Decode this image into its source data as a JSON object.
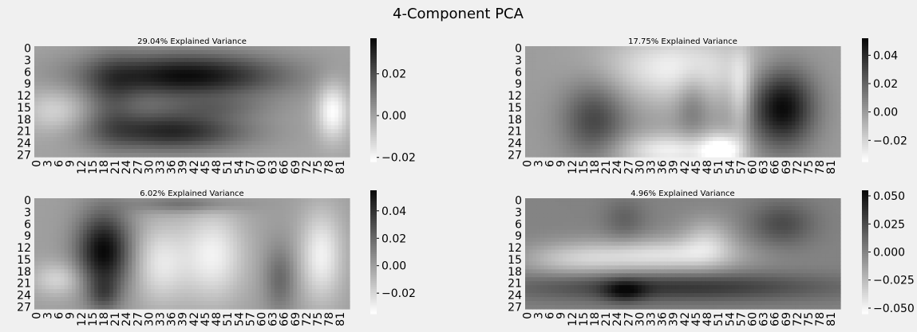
{
  "figure": {
    "title": "4-Component PCA",
    "background": "#f0f0f0",
    "colormap": "Greys (white = low, black = high)"
  },
  "chart_data": [
    {
      "type": "heatmap",
      "title": "29.04% Explained Variance",
      "rows": 28,
      "cols": 84,
      "x_ticks": [
        "0",
        "3",
        "6",
        "9",
        "12",
        "15",
        "18",
        "21",
        "24",
        "27",
        "30",
        "33",
        "36",
        "39",
        "42",
        "45",
        "48",
        "51",
        "54",
        "57",
        "60",
        "63",
        "66",
        "69",
        "72",
        "75",
        "78",
        "81"
      ],
      "y_ticks": [
        "0",
        "3",
        "6",
        "9",
        "12",
        "15",
        "18",
        "21",
        "24",
        "27"
      ],
      "colorbar_ticks": [
        "0.02",
        "0.00",
        "−0.02"
      ],
      "vmin": -0.022,
      "vmax": 0.037,
      "fill_value": 0.0,
      "blobs": [
        {
          "row": 7,
          "col": 40,
          "sr": 4,
          "sc": 18,
          "amp": 0.036
        },
        {
          "row": 21,
          "col": 36,
          "sr": 3.5,
          "sc": 14,
          "amp": 0.03
        },
        {
          "row": 13,
          "col": 20,
          "sr": 8,
          "sc": 5,
          "amp": 0.012
        },
        {
          "row": 16,
          "col": 79,
          "sr": 5,
          "sc": 3,
          "amp": -0.022
        },
        {
          "row": 16,
          "col": 5,
          "sr": 4,
          "sc": 6,
          "amp": -0.012
        },
        {
          "row": 15,
          "col": 48,
          "sr": 2,
          "sc": 10,
          "amp": 0.008
        }
      ]
    },
    {
      "type": "heatmap",
      "title": "17.75% Explained Variance",
      "rows": 28,
      "cols": 84,
      "x_ticks": [
        "0",
        "3",
        "6",
        "9",
        "12",
        "15",
        "18",
        "21",
        "24",
        "27",
        "30",
        "33",
        "36",
        "39",
        "42",
        "45",
        "48",
        "51",
        "54",
        "57",
        "60",
        "63",
        "66",
        "69",
        "72",
        "75",
        "78",
        "81"
      ],
      "y_ticks": [
        "0",
        "3",
        "6",
        "9",
        "12",
        "15",
        "18",
        "21",
        "24",
        "27"
      ],
      "colorbar_ticks": [
        "0.04",
        "0.02",
        "0.00",
        "−0.02"
      ],
      "vmin": -0.035,
      "vmax": 0.052,
      "fill_value": 0.0,
      "blobs": [
        {
          "row": 15,
          "col": 68,
          "sr": 7,
          "sc": 6,
          "amp": 0.052
        },
        {
          "row": 18,
          "col": 18,
          "sr": 7,
          "sc": 6,
          "amp": 0.03
        },
        {
          "row": 5,
          "col": 40,
          "sr": 6,
          "sc": 14,
          "amp": -0.03
        },
        {
          "row": 26,
          "col": 38,
          "sr": 3,
          "sc": 10,
          "amp": -0.03
        },
        {
          "row": 26,
          "col": 52,
          "sr": 3,
          "sc": 4,
          "amp": -0.035
        },
        {
          "row": 14,
          "col": 44,
          "sr": 6,
          "sc": 3,
          "amp": 0.015
        },
        {
          "row": 12,
          "col": 57,
          "sr": 8,
          "sc": 2,
          "amp": -0.02
        }
      ]
    },
    {
      "type": "heatmap",
      "title": "6.02% Explained Variance",
      "rows": 28,
      "cols": 84,
      "x_ticks": [
        "0",
        "3",
        "6",
        "9",
        "12",
        "15",
        "18",
        "21",
        "24",
        "27",
        "30",
        "33",
        "36",
        "39",
        "42",
        "45",
        "48",
        "51",
        "54",
        "57",
        "60",
        "63",
        "66",
        "69",
        "72",
        "75",
        "78",
        "81"
      ],
      "y_ticks": [
        "0",
        "3",
        "6",
        "9",
        "12",
        "15",
        "18",
        "21",
        "24",
        "27"
      ],
      "colorbar_ticks": [
        "0.04",
        "0.02",
        "0.00",
        "−0.02"
      ],
      "vmin": -0.035,
      "vmax": 0.055,
      "fill_value": 0.0,
      "blobs": [
        {
          "row": 13,
          "col": 18,
          "sr": 7,
          "sc": 5,
          "amp": 0.055
        },
        {
          "row": 1,
          "col": 40,
          "sr": 1.5,
          "sc": 10,
          "amp": 0.02
        },
        {
          "row": 14,
          "col": 47,
          "sr": 8,
          "sc": 6,
          "amp": -0.03
        },
        {
          "row": 16,
          "col": 33,
          "sr": 7,
          "sc": 5,
          "amp": -0.025
        },
        {
          "row": 14,
          "col": 76,
          "sr": 8,
          "sc": 4,
          "amp": -0.03
        },
        {
          "row": 20,
          "col": 6,
          "sr": 3,
          "sc": 5,
          "amp": -0.02
        },
        {
          "row": 24,
          "col": 18,
          "sr": 3,
          "sc": 3,
          "amp": 0.02
        },
        {
          "row": 20,
          "col": 65,
          "sr": 6,
          "sc": 3,
          "amp": 0.02
        }
      ]
    },
    {
      "type": "heatmap",
      "title": "4.96% Explained Variance",
      "rows": 28,
      "cols": 84,
      "x_ticks": [
        "0",
        "3",
        "6",
        "9",
        "12",
        "15",
        "18",
        "21",
        "24",
        "27",
        "30",
        "33",
        "36",
        "39",
        "42",
        "45",
        "48",
        "51",
        "54",
        "57",
        "60",
        "63",
        "66",
        "69",
        "72",
        "75",
        "78",
        "81"
      ],
      "y_ticks": [
        "0",
        "3",
        "6",
        "9",
        "12",
        "15",
        "18",
        "21",
        "24",
        "27"
      ],
      "colorbar_ticks": [
        "0.050",
        "0.025",
        "0.000",
        "−0.025",
        "−0.050"
      ],
      "vmin": -0.055,
      "vmax": 0.055,
      "fill_value": 0.0,
      "blobs": [
        {
          "row": 22,
          "col": 40,
          "sr": 2.5,
          "sc": 30,
          "amp": 0.035
        },
        {
          "row": 23,
          "col": 26,
          "sr": 2,
          "sc": 4,
          "amp": 0.03
        },
        {
          "row": 14,
          "col": 36,
          "sr": 3,
          "sc": 14,
          "amp": -0.04
        },
        {
          "row": 15,
          "col": 12,
          "sr": 3,
          "sc": 10,
          "amp": -0.025
        },
        {
          "row": 6,
          "col": 68,
          "sr": 4,
          "sc": 6,
          "amp": 0.025
        },
        {
          "row": 10,
          "col": 48,
          "sr": 4,
          "sc": 5,
          "amp": -0.025
        },
        {
          "row": 5,
          "col": 26,
          "sr": 4,
          "sc": 4,
          "amp": 0.015
        }
      ]
    }
  ]
}
